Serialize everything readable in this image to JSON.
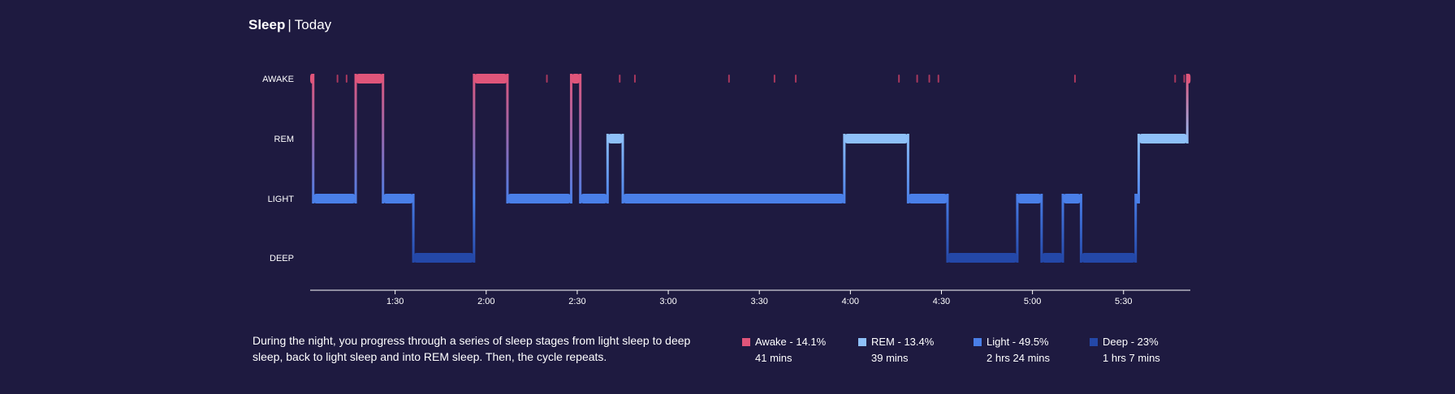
{
  "header": {
    "title": "Sleep",
    "separator": "|",
    "subtitle": "Today"
  },
  "colors": {
    "background": "#1e1a40",
    "awake": "#e0557a",
    "rem": "#8ec0f8",
    "light": "#4a7fe8",
    "deep": "#2448a8",
    "awake_marker": "#a8385e",
    "axis": "#ffffff"
  },
  "description": "During the night, you progress through a series of sleep stages from light sleep to deep sleep, back to light sleep and into REM sleep. Then, the cycle repeats.",
  "legend": [
    {
      "key": "awake",
      "label": "Awake - 14.1%",
      "duration": "41 mins",
      "color": "#e0557a"
    },
    {
      "key": "rem",
      "label": "REM - 13.4%",
      "duration": "39 mins",
      "color": "#8ec0f8"
    },
    {
      "key": "light",
      "label": "Light - 49.5%",
      "duration": "2 hrs 24 mins",
      "color": "#4a7fe8"
    },
    {
      "key": "deep",
      "label": "Deep - 23%",
      "duration": "1 hrs 7 mins",
      "color": "#2448a8"
    }
  ],
  "chart_data": {
    "type": "area",
    "y_categories": [
      "AWAKE",
      "REM",
      "LIGHT",
      "DEEP"
    ],
    "x_range": [
      "1:02",
      "5:52"
    ],
    "x_ticks": [
      "1:30",
      "2:00",
      "2:30",
      "3:00",
      "3:30",
      "4:00",
      "4:30",
      "5:00",
      "5:30"
    ],
    "grid": false,
    "stages": [
      {
        "start": "1:02",
        "end": "1:03",
        "stage": "AWAKE"
      },
      {
        "start": "1:03",
        "end": "1:17",
        "stage": "LIGHT"
      },
      {
        "start": "1:17",
        "end": "1:26",
        "stage": "AWAKE"
      },
      {
        "start": "1:26",
        "end": "1:36",
        "stage": "LIGHT"
      },
      {
        "start": "1:36",
        "end": "1:56",
        "stage": "DEEP"
      },
      {
        "start": "1:56",
        "end": "2:07",
        "stage": "AWAKE"
      },
      {
        "start": "2:07",
        "end": "2:28",
        "stage": "LIGHT"
      },
      {
        "start": "2:28",
        "end": "2:31",
        "stage": "AWAKE"
      },
      {
        "start": "2:31",
        "end": "2:40",
        "stage": "LIGHT"
      },
      {
        "start": "2:40",
        "end": "2:45",
        "stage": "REM"
      },
      {
        "start": "2:45",
        "end": "3:58",
        "stage": "LIGHT"
      },
      {
        "start": "3:58",
        "end": "4:19",
        "stage": "REM"
      },
      {
        "start": "4:19",
        "end": "4:32",
        "stage": "LIGHT"
      },
      {
        "start": "4:32",
        "end": "4:55",
        "stage": "DEEP"
      },
      {
        "start": "4:55",
        "end": "5:03",
        "stage": "LIGHT"
      },
      {
        "start": "5:03",
        "end": "5:10",
        "stage": "DEEP"
      },
      {
        "start": "5:10",
        "end": "5:16",
        "stage": "LIGHT"
      },
      {
        "start": "5:16",
        "end": "5:34",
        "stage": "DEEP"
      },
      {
        "start": "5:34",
        "end": "5:35",
        "stage": "LIGHT"
      },
      {
        "start": "5:35",
        "end": "5:51",
        "stage": "REM"
      },
      {
        "start": "5:51",
        "end": "5:52",
        "stage": "AWAKE"
      }
    ],
    "awake_markers": [
      "1:11",
      "1:14",
      "2:20",
      "2:44",
      "2:49",
      "3:20",
      "3:35",
      "3:42",
      "4:16",
      "4:22",
      "4:26",
      "4:29",
      "5:14",
      "5:47",
      "5:50"
    ]
  }
}
